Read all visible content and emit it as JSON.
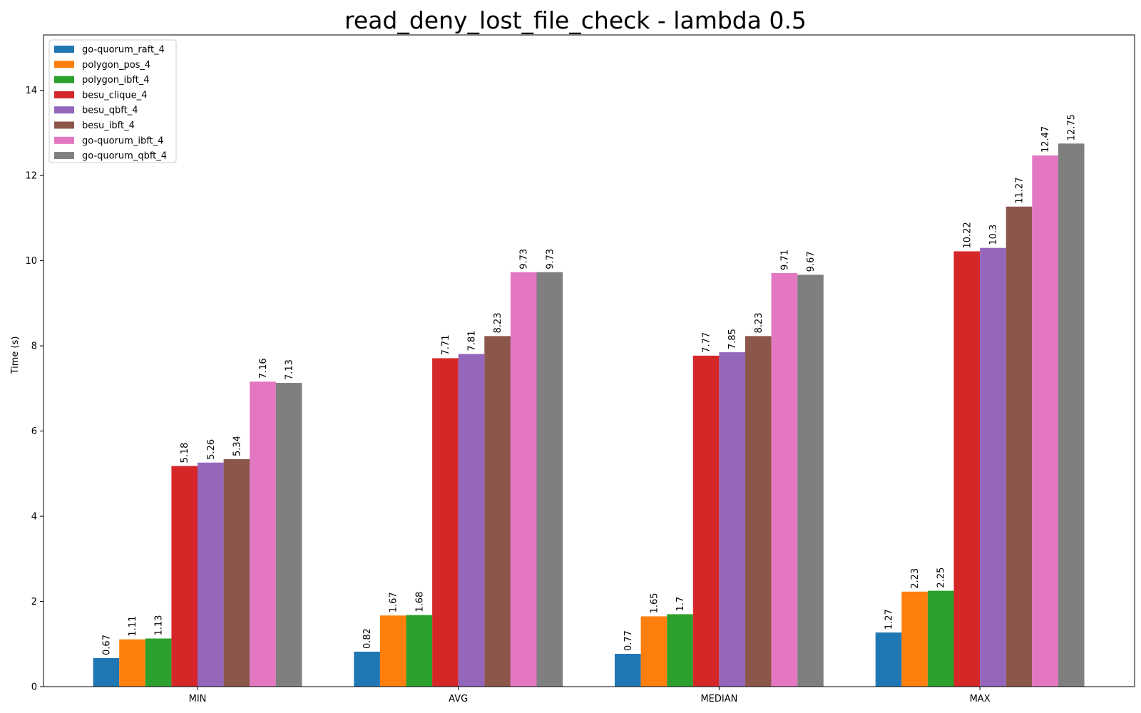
{
  "chart_data": {
    "type": "bar",
    "title": "read_deny_lost_file_check - lambda 0.5",
    "xlabel": "",
    "ylabel": "Time (s)",
    "ylim": [
      0,
      15.3
    ],
    "yticks": [
      0,
      2,
      4,
      6,
      8,
      10,
      12,
      14
    ],
    "grid": false,
    "legend_position": "top-left",
    "categories": [
      "MIN",
      "AVG",
      "MEDIAN",
      "MAX"
    ],
    "series": [
      {
        "name": "go-quorum_raft_4",
        "color": "#1f77b4",
        "values": [
          0.67,
          0.82,
          0.77,
          1.27
        ]
      },
      {
        "name": "polygon_pos_4",
        "color": "#ff7f0e",
        "values": [
          1.11,
          1.67,
          1.65,
          2.23
        ]
      },
      {
        "name": "polygon_ibft_4",
        "color": "#2ca02c",
        "values": [
          1.13,
          1.68,
          1.7,
          2.25
        ]
      },
      {
        "name": "besu_clique_4",
        "color": "#d62728",
        "values": [
          5.18,
          7.71,
          7.77,
          10.22
        ]
      },
      {
        "name": "besu_qbft_4",
        "color": "#9467bd",
        "values": [
          5.26,
          7.81,
          7.85,
          10.3
        ]
      },
      {
        "name": "besu_ibft_4",
        "color": "#8c564b",
        "values": [
          5.34,
          8.23,
          8.23,
          11.27
        ]
      },
      {
        "name": "go-quorum_ibft_4",
        "color": "#e377c2",
        "values": [
          7.16,
          9.73,
          9.71,
          12.47
        ]
      },
      {
        "name": "go-quorum_qbft_4",
        "color": "#7f7f7f",
        "values": [
          7.13,
          9.73,
          9.67,
          12.75
        ]
      }
    ]
  }
}
